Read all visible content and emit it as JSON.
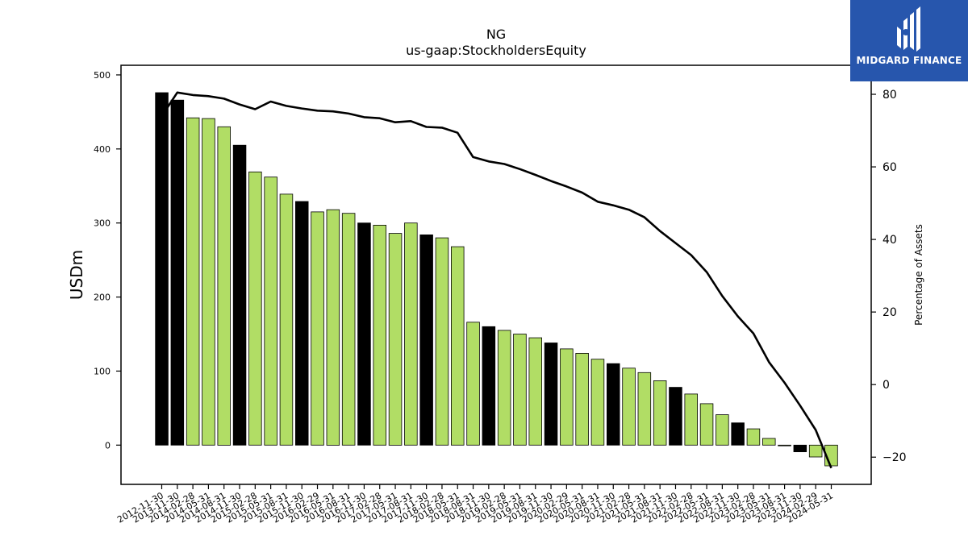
{
  "brand": {
    "name": "MIDGARD FINANCE",
    "color": "#2756ad"
  },
  "chart_data": {
    "type": "bar",
    "title": "NG",
    "subtitle": "us-gaap:StockholdersEquity",
    "ylabel": "USDm",
    "y2label": "Percentage of Assets",
    "ylim": [
      -53,
      513
    ],
    "y2lim": [
      -27.5,
      88
    ],
    "yticks": [
      0,
      100,
      200,
      300,
      400,
      500
    ],
    "y2ticks": [
      -20,
      0,
      20,
      40,
      60,
      80
    ],
    "categories": [
      "2012-11-30",
      "2013-11-30",
      "2014-02-28",
      "2014-05-31",
      "2014-08-31",
      "2014-11-30",
      "2015-02-28",
      "2015-05-31",
      "2015-08-31",
      "2015-11-30",
      "2016-02-29",
      "2016-05-31",
      "2016-08-31",
      "2016-11-30",
      "2017-02-28",
      "2017-05-31",
      "2017-08-31",
      "2017-11-30",
      "2018-02-28",
      "2018-05-31",
      "2018-08-31",
      "2018-11-30",
      "2019-02-28",
      "2019-05-31",
      "2019-08-31",
      "2019-11-30",
      "2020-02-29",
      "2020-05-31",
      "2020-08-31",
      "2020-11-30",
      "2021-02-28",
      "2021-05-31",
      "2021-08-31",
      "2021-11-30",
      "2022-02-28",
      "2022-05-31",
      "2022-08-31",
      "2022-11-30",
      "2023-02-28",
      "2023-05-31",
      "2023-08-31",
      "2023-11-30",
      "2024-02-29",
      "2024-05-31"
    ],
    "series": [
      {
        "kind": "bar",
        "values": [
          476,
          466,
          442,
          441,
          430,
          405,
          369,
          362,
          339,
          329,
          315,
          318,
          313,
          300,
          297,
          286,
          300,
          284,
          280,
          268,
          166,
          160,
          155,
          150,
          145,
          138,
          130,
          124,
          116,
          110,
          104,
          98,
          87,
          78,
          69,
          56,
          41,
          30,
          22,
          9,
          -1,
          -9,
          -16,
          -28
        ]
      },
      {
        "kind": "line",
        "values": [
          74,
          80.5,
          79.8,
          79.5,
          78.8,
          77.2,
          75.9,
          78.0,
          76.8,
          76.1,
          75.5,
          75.3,
          74.7,
          73.7,
          73.4,
          72.3,
          72.6,
          71.0,
          70.8,
          69.4,
          62.7,
          61.5,
          60.8,
          59.4,
          57.8,
          56.1,
          54.6,
          52.9,
          50.4,
          49.4,
          48.2,
          46.1,
          42.3,
          39.0,
          35.7,
          31.0,
          24.4,
          18.8,
          14.1,
          6.2,
          0.5,
          -5.8,
          -12.5,
          -23.0
        ]
      }
    ],
    "colors": {
      "bar_odd_quarter": "#b1dd65",
      "bar_fiscal_year": "#000000",
      "line": "#000000"
    }
  }
}
